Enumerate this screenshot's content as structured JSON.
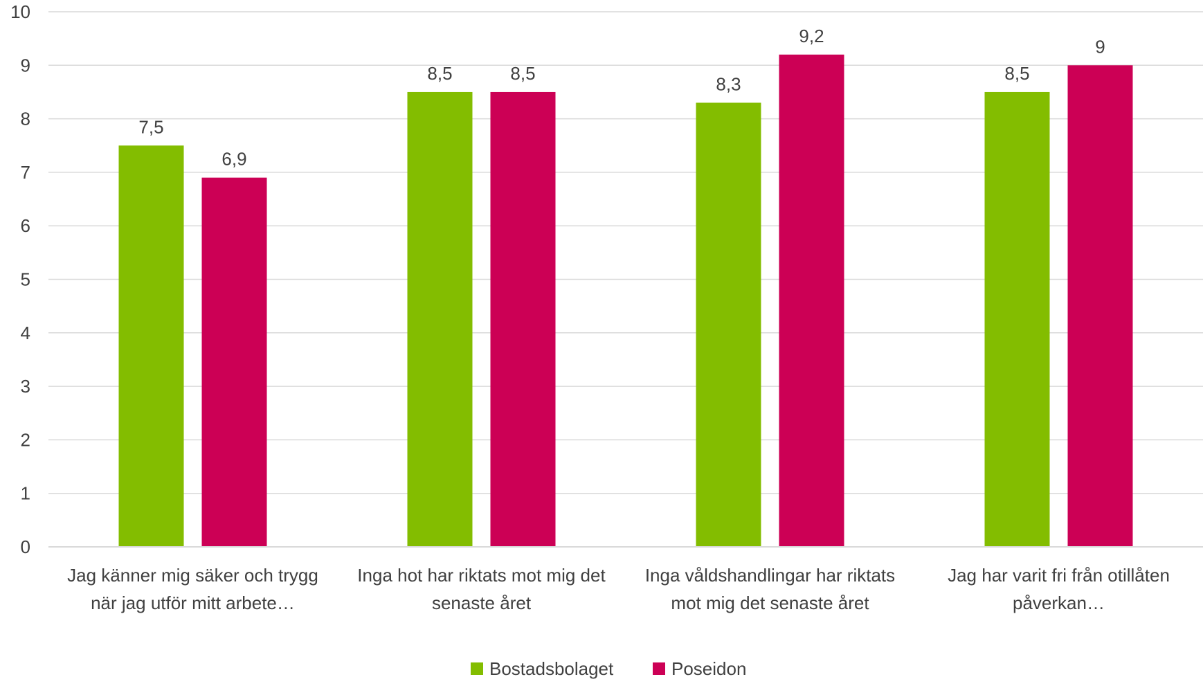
{
  "chart_data": {
    "type": "bar",
    "categories": [
      [
        "Jag känner mig säker och trygg",
        "när jag utför mitt arbete…"
      ],
      [
        "Inga hot har riktats mot mig det",
        "senaste året"
      ],
      [
        "Inga våldshandlingar har riktats",
        "mot mig det senaste året"
      ],
      [
        "Jag har varit fri från otillåten",
        "påverkan…"
      ]
    ],
    "series": [
      {
        "name": "Bostadsbolaget",
        "color": "#83BD00",
        "values": [
          7.5,
          8.5,
          8.3,
          8.5
        ],
        "labels": [
          "7,5",
          "8,5",
          "8,3",
          "8,5"
        ]
      },
      {
        "name": "Poseidon",
        "color": "#CC0055",
        "values": [
          6.9,
          8.5,
          9.2,
          9
        ],
        "labels": [
          "6,9",
          "8,5",
          "9,2",
          "9"
        ]
      }
    ],
    "yticks": [
      "0",
      "1",
      "2",
      "3",
      "4",
      "5",
      "6",
      "7",
      "8",
      "9",
      "10"
    ],
    "ylim": [
      0,
      10
    ],
    "grid": true,
    "gridColor": "#D9D9D9",
    "legend": "bottom",
    "title": "",
    "xlabel": "",
    "ylabel": ""
  }
}
